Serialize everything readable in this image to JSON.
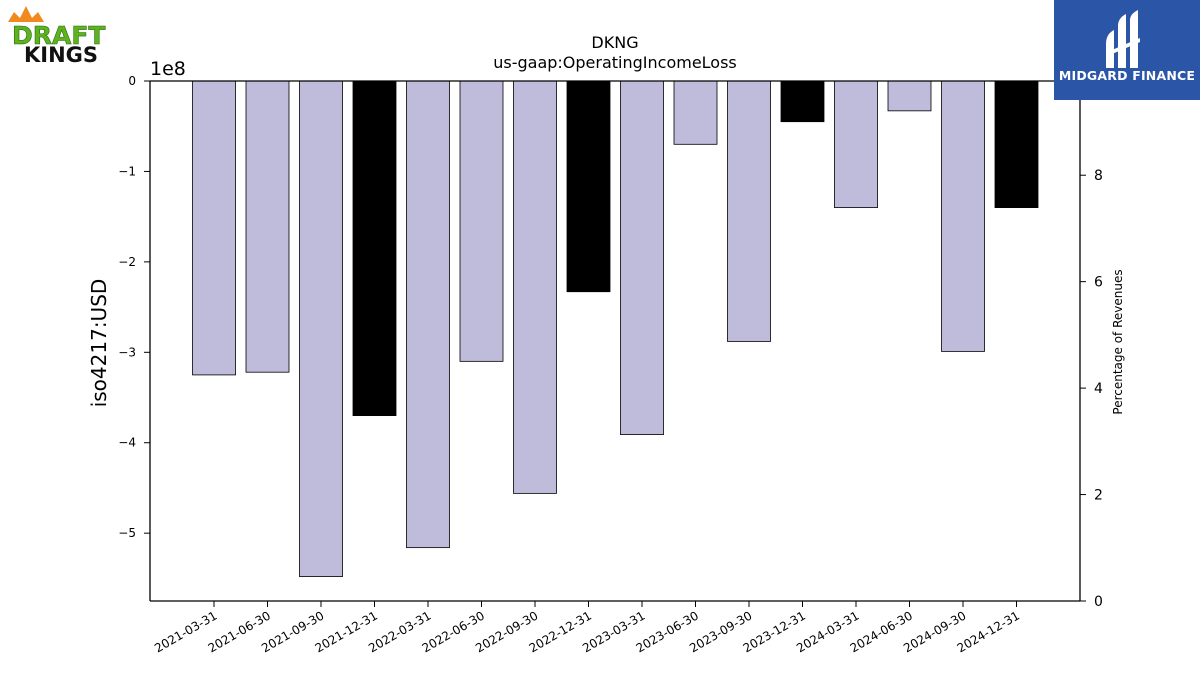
{
  "logos": {
    "left": {
      "line1": "DRAFT",
      "line2": "KINGS"
    },
    "right": {
      "text": "MIDGARD FINANCE"
    }
  },
  "colors": {
    "bar_quarter": "#bebbdb",
    "bar_year_end": "#000000",
    "bar_edge": "#000000",
    "brand_blue": "#2b56a8",
    "draftkings_green": "#5bb31d",
    "draftkings_orange": "#f08a1c"
  },
  "chart_data": {
    "type": "bar",
    "title": "DKNG",
    "subtitle": "us-gaap:OperatingIncomeLoss",
    "ylabel": "iso4217:USD",
    "y_offset_label": "1e8",
    "y2label": "Percentage of Revenues",
    "ylim": [
      -575000000,
      0
    ],
    "yticks": [
      0,
      -100000000,
      -200000000,
      -300000000,
      -400000000,
      -500000000
    ],
    "ytick_labels": [
      "0",
      "−1",
      "−2",
      "−3",
      "−4",
      "−5"
    ],
    "y2lim": [
      0,
      9.77
    ],
    "y2ticks": [
      0,
      2,
      4,
      6,
      8
    ],
    "y2tick_labels": [
      "0",
      "2",
      "4",
      "6",
      "8"
    ],
    "grid": false,
    "categories": [
      "2021-03-31",
      "2021-06-30",
      "2021-09-30",
      "2021-12-31",
      "2022-03-31",
      "2022-06-30",
      "2022-09-30",
      "2022-12-31",
      "2023-03-31",
      "2023-06-30",
      "2023-09-30",
      "2023-12-31",
      "2024-03-31",
      "2024-06-30",
      "2024-09-30",
      "2024-12-31"
    ],
    "values": [
      -325000000,
      -322000000,
      -548000000,
      -370000000,
      -516000000,
      -310000000,
      -456000000,
      -233000000,
      -391000000,
      -70000000,
      -288000000,
      -45000000,
      -140000000,
      -33000000,
      -299000000,
      -140000000
    ],
    "year_end": [
      false,
      false,
      false,
      true,
      false,
      false,
      false,
      true,
      false,
      false,
      false,
      true,
      false,
      false,
      false,
      true
    ]
  }
}
